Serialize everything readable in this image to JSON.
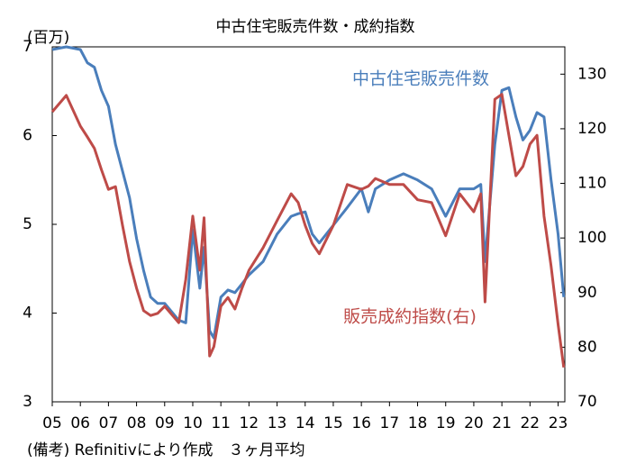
{
  "chart_data": {
    "type": "line",
    "title": "中古住宅販売件数・成約指数",
    "y_unit_label": "(百万)",
    "note": "(備考) Refinitivにより作成　３ヶ月平均",
    "x": [
      2005.0,
      2005.5,
      2006.0,
      2006.25,
      2006.5,
      2006.75,
      2007.0,
      2007.25,
      2007.5,
      2007.75,
      2008.0,
      2008.25,
      2008.5,
      2008.75,
      2009.0,
      2009.5,
      2009.75,
      2010.0,
      2010.25,
      2010.4,
      2010.6,
      2010.75,
      2011.0,
      2011.25,
      2011.5,
      2011.75,
      2012.0,
      2012.5,
      2013.0,
      2013.5,
      2013.75,
      2014.0,
      2014.25,
      2014.5,
      2015.0,
      2015.5,
      2016.0,
      2016.25,
      2016.5,
      2017.0,
      2017.5,
      2018.0,
      2018.5,
      2019.0,
      2019.5,
      2020.0,
      2020.25,
      2020.4,
      2020.75,
      2021.0,
      2021.25,
      2021.5,
      2021.75,
      2022.0,
      2022.25,
      2022.5,
      2022.75,
      2023.0,
      2023.2
    ],
    "series": [
      {
        "name": "中古住宅販売件数",
        "color": "#4a7ebb",
        "axis": "y",
        "values": [
          6.97,
          7.0,
          6.97,
          6.82,
          6.77,
          6.51,
          6.33,
          5.9,
          5.6,
          5.3,
          4.84,
          4.48,
          4.18,
          4.11,
          4.11,
          3.92,
          3.89,
          4.94,
          4.28,
          4.74,
          3.8,
          3.72,
          4.18,
          4.26,
          4.23,
          4.33,
          4.43,
          4.58,
          4.89,
          5.09,
          5.12,
          5.14,
          4.89,
          4.79,
          4.99,
          5.19,
          5.4,
          5.14,
          5.4,
          5.5,
          5.57,
          5.5,
          5.4,
          5.09,
          5.4,
          5.4,
          5.45,
          4.58,
          5.9,
          6.51,
          6.54,
          6.21,
          5.95,
          6.06,
          6.26,
          6.21,
          5.5,
          4.89,
          4.18
        ]
      },
      {
        "name": "販売成約指数(右)",
        "color": "#be4b48",
        "axis": "y2",
        "values": [
          123.1,
          126.1,
          120.5,
          118.5,
          116.4,
          112.5,
          108.9,
          109.4,
          102.3,
          95.7,
          90.8,
          86.7,
          85.8,
          86.2,
          87.5,
          84.5,
          92.4,
          104.0,
          94.1,
          103.7,
          78.4,
          80.1,
          87.5,
          89.1,
          87.0,
          90.8,
          94.1,
          98.2,
          103.2,
          108.1,
          106.5,
          102.3,
          99.0,
          97.1,
          102.3,
          109.8,
          108.9,
          109.5,
          110.9,
          109.8,
          109.8,
          107.0,
          106.5,
          100.4,
          108.1,
          104.8,
          108.1,
          88.3,
          125.4,
          126.3,
          118.8,
          111.4,
          113.1,
          117.2,
          118.8,
          104.0,
          94.9,
          84.2,
          76.3
        ]
      }
    ],
    "xlim": [
      2005,
      2023.24
    ],
    "xticks": [
      {
        "value": 2005,
        "label": "05"
      },
      {
        "value": 2006,
        "label": "06"
      },
      {
        "value": 2007,
        "label": "07"
      },
      {
        "value": 2008,
        "label": "08"
      },
      {
        "value": 2009,
        "label": "09"
      },
      {
        "value": 2010,
        "label": "10"
      },
      {
        "value": 2011,
        "label": "11"
      },
      {
        "value": 2012,
        "label": "12"
      },
      {
        "value": 2013,
        "label": "13"
      },
      {
        "value": 2014,
        "label": "14"
      },
      {
        "value": 2015,
        "label": "15"
      },
      {
        "value": 2016,
        "label": "16"
      },
      {
        "value": 2017,
        "label": "17"
      },
      {
        "value": 2018,
        "label": "18"
      },
      {
        "value": 2019,
        "label": "19"
      },
      {
        "value": 2020,
        "label": "20"
      },
      {
        "value": 2021,
        "label": "21"
      },
      {
        "value": 2022,
        "label": "22"
      },
      {
        "value": 2023,
        "label": "23"
      }
    ],
    "ylim": [
      3,
      7
    ],
    "yticks": [
      3,
      4,
      5,
      6,
      7
    ],
    "y2lim": [
      70,
      135
    ],
    "y2ticks": [
      70,
      80,
      90,
      100,
      110,
      120,
      130
    ],
    "grid": false
  }
}
